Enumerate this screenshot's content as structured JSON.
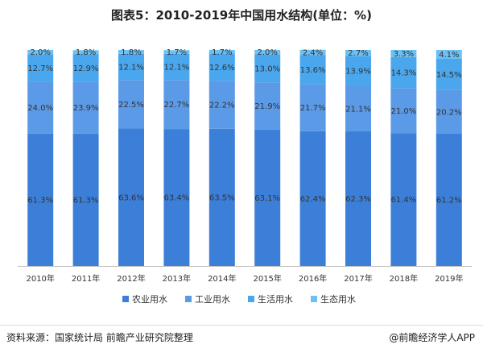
{
  "chart_data": {
    "type": "bar",
    "stacked": true,
    "title": "图表5：2010-2019年中国用水结构(单位：%)",
    "categories": [
      "2010年",
      "2011年",
      "2012年",
      "2013年",
      "2014年",
      "2015年",
      "2016年",
      "2017年",
      "2018年",
      "2019年"
    ],
    "series": [
      {
        "name": "农业用水",
        "color": "#3c7fd9",
        "values": [
          61.3,
          61.3,
          63.6,
          63.4,
          63.5,
          63.1,
          62.4,
          62.3,
          61.4,
          61.2
        ]
      },
      {
        "name": "工业用水",
        "color": "#5b9ae6",
        "values": [
          24.0,
          23.9,
          22.5,
          22.7,
          22.2,
          21.9,
          21.7,
          21.1,
          21.0,
          20.2
        ]
      },
      {
        "name": "生活用水",
        "color": "#4aa7ee",
        "values": [
          12.7,
          12.9,
          12.1,
          12.1,
          12.6,
          13.0,
          13.6,
          13.9,
          14.3,
          14.5
        ]
      },
      {
        "name": "生态用水",
        "color": "#6cc0f3",
        "values": [
          2.0,
          1.8,
          1.8,
          1.7,
          1.7,
          2.0,
          2.4,
          2.7,
          3.3,
          4.1
        ]
      }
    ],
    "labels": [
      [
        "61.3%",
        "61.3%",
        "63.6%",
        "63.4%",
        "63.5%",
        "63.1%",
        "62.4%",
        "62.3%",
        "61.4%",
        "61.2%"
      ],
      [
        "24.0%",
        "23.9%",
        "22.5%",
        "22.7%",
        "22.2%",
        "21.9%",
        "21.7%",
        "21.1%",
        "21.0%",
        "20.2%"
      ],
      [
        "12.7%",
        "12.9%",
        "12.1%",
        "12.1%",
        "12.6%",
        "13.0%",
        "13.6%",
        "13.9%",
        "14.3%",
        "14.5%"
      ],
      [
        "2.0%",
        "1.8%",
        "1.8%",
        "1.7%",
        "1.7%",
        "2.0%",
        "2.4%",
        "2.7%",
        "3.3%",
        "4.1%"
      ]
    ],
    "ylim": [
      0,
      100
    ],
    "legend_position": "bottom",
    "grid": false
  },
  "footer": {
    "source": "资料来源：国家统计局 前瞻产业研究院整理",
    "brand": "@前瞻经济学人APP"
  }
}
